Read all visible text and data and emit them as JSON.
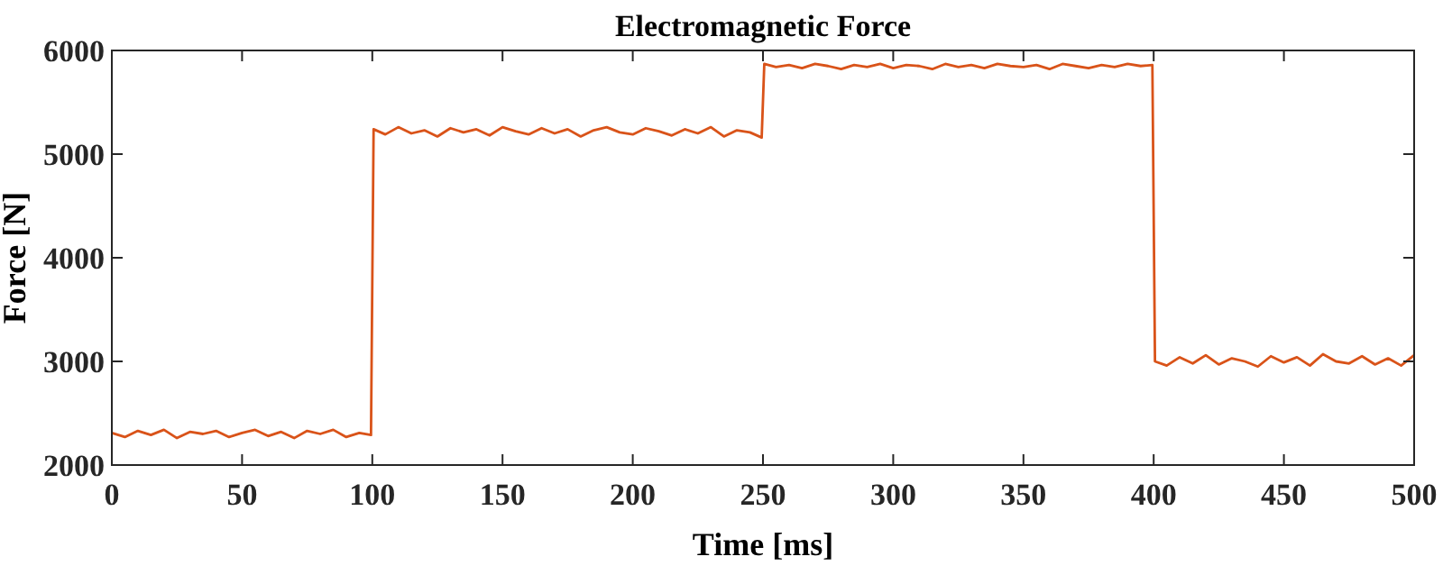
{
  "chart_data": {
    "type": "line",
    "title": "Electromagnetic Force",
    "xlabel": "Time [ms]",
    "ylabel": "Force [N]",
    "xlim": [
      0,
      500
    ],
    "ylim": [
      2000,
      6000
    ],
    "xticks": [
      0,
      50,
      100,
      150,
      200,
      250,
      300,
      350,
      400,
      450,
      500
    ],
    "yticks": [
      2000,
      3000,
      4000,
      5000,
      6000
    ],
    "grid": false,
    "line_style": "solid",
    "marker": "none",
    "series": [
      {
        "color": "#d95319",
        "x": [
          0,
          5,
          10,
          15,
          20,
          25,
          30,
          35,
          40,
          45,
          50,
          55,
          60,
          65,
          70,
          75,
          80,
          85,
          90,
          95,
          99.5,
          100.5,
          105,
          110,
          115,
          120,
          125,
          130,
          135,
          140,
          145,
          150,
          155,
          160,
          165,
          170,
          175,
          180,
          185,
          190,
          195,
          200,
          205,
          210,
          215,
          220,
          225,
          230,
          235,
          240,
          245,
          249.5,
          250.5,
          255,
          260,
          265,
          270,
          275,
          280,
          285,
          290,
          295,
          300,
          305,
          310,
          315,
          320,
          325,
          330,
          335,
          340,
          345,
          350,
          355,
          360,
          365,
          370,
          375,
          380,
          385,
          390,
          395,
          399.5,
          400.5,
          405,
          410,
          415,
          420,
          425,
          430,
          435,
          440,
          445,
          450,
          455,
          460,
          465,
          470,
          475,
          480,
          485,
          490,
          495,
          500
        ],
        "values": [
          2310,
          2270,
          2330,
          2290,
          2340,
          2260,
          2320,
          2300,
          2330,
          2270,
          2310,
          2340,
          2280,
          2320,
          2260,
          2330,
          2300,
          2340,
          2270,
          2310,
          2290,
          5240,
          5190,
          5260,
          5200,
          5230,
          5170,
          5250,
          5210,
          5240,
          5180,
          5260,
          5220,
          5190,
          5250,
          5200,
          5240,
          5170,
          5230,
          5260,
          5210,
          5190,
          5250,
          5220,
          5180,
          5240,
          5200,
          5260,
          5170,
          5230,
          5210,
          5160,
          5870,
          5840,
          5860,
          5830,
          5870,
          5850,
          5820,
          5860,
          5840,
          5870,
          5830,
          5860,
          5850,
          5820,
          5870,
          5840,
          5860,
          5830,
          5870,
          5850,
          5840,
          5860,
          5820,
          5870,
          5850,
          5830,
          5860,
          5840,
          5870,
          5850,
          5860,
          3000,
          2960,
          3040,
          2980,
          3060,
          2970,
          3030,
          3000,
          2950,
          3050,
          2990,
          3040,
          2960,
          3070,
          3000,
          2980,
          3050,
          2970,
          3030,
          2960,
          3060
        ]
      }
    ]
  }
}
